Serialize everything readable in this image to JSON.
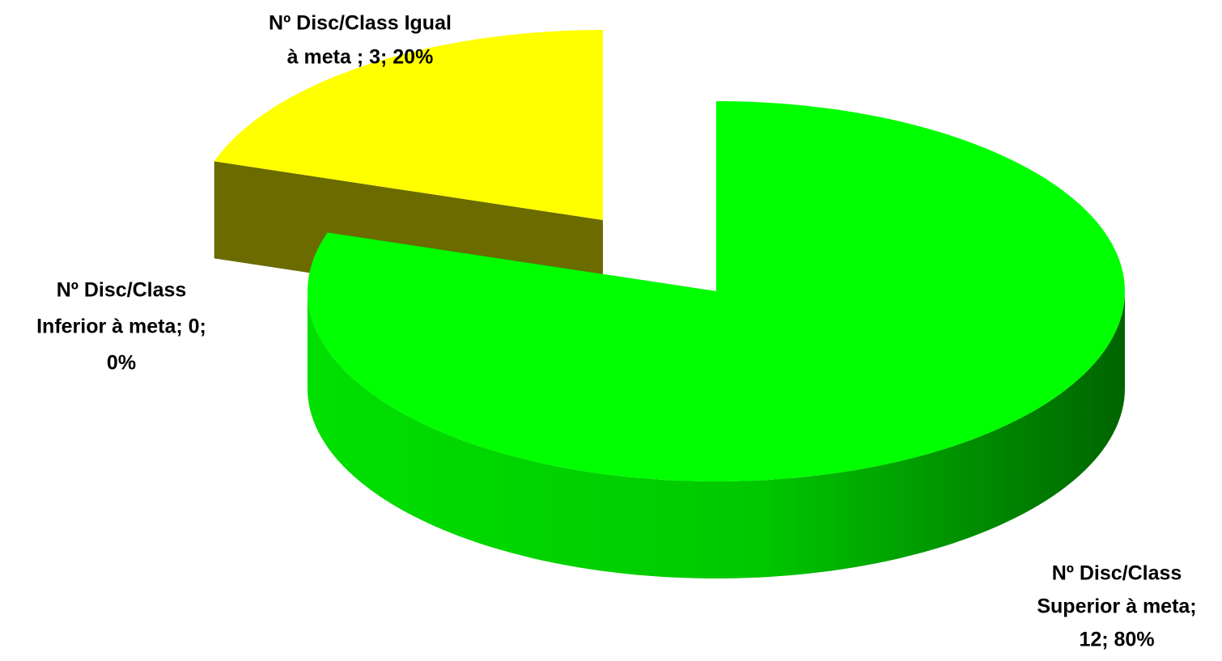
{
  "chart_data": {
    "type": "pie3d",
    "labels": [
      [
        "Nº Disc/Class",
        "Superior à meta;",
        "12; 80%"
      ],
      [
        "Nº Disc/Class Igual",
        "à meta ; 3; 20%"
      ],
      [
        "Nº Disc/Class",
        "Inferior à meta; 0;",
        "0%"
      ]
    ],
    "values": [
      12,
      3,
      0
    ],
    "colors": [
      "#00ff00",
      "#ffff00",
      "#5a1818"
    ]
  }
}
